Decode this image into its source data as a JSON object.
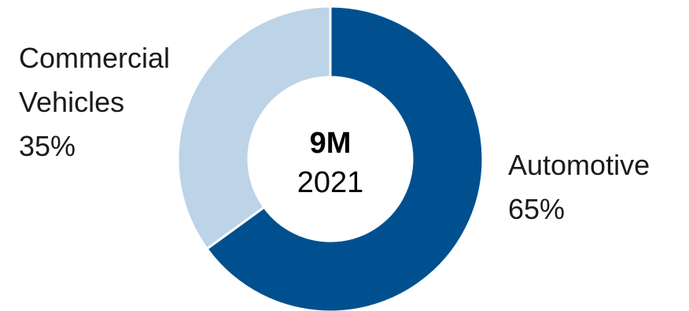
{
  "chart_data": {
    "type": "pie",
    "style": "donut",
    "center_text": {
      "line1": "9M",
      "line2": "2021"
    },
    "slices": [
      {
        "label_line1": "Automotive",
        "label_line2": "",
        "percent_label": "65%",
        "value": 65,
        "color": "#00508f"
      },
      {
        "label_line1": "Commercial",
        "label_line2": "Vehicles",
        "percent_label": "35%",
        "value": 35,
        "color": "#bcd3e8"
      }
    ]
  }
}
